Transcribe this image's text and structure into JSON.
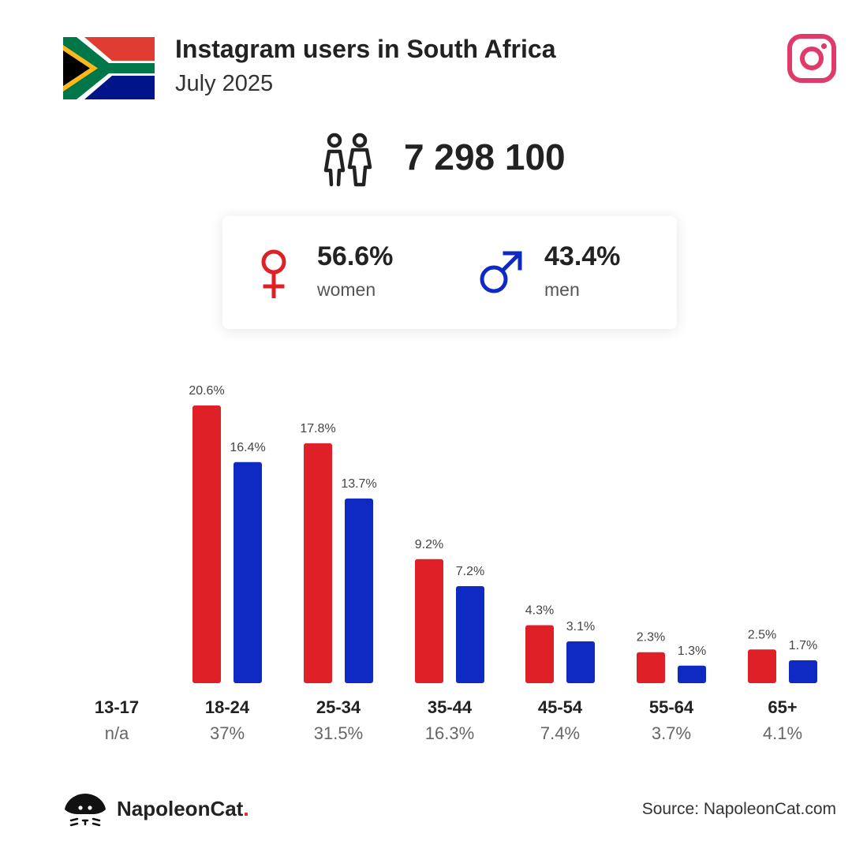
{
  "header": {
    "title": "Instagram users in South Africa",
    "subtitle": "July 2025"
  },
  "icons": {
    "flag": "south-africa-flag",
    "platform": "instagram-icon",
    "people": "people-icon",
    "female": "female-symbol-icon",
    "male": "male-symbol-icon",
    "logo": "napoleoncat-logo"
  },
  "totals": {
    "users": "7 298 100"
  },
  "gender": {
    "female_pct": "56.6%",
    "female_label": "women",
    "male_pct": "43.4%",
    "male_label": "men"
  },
  "colors": {
    "women": "#df2027",
    "men": "#0f2ac2",
    "instagram": "#e03a6b"
  },
  "chart_data": {
    "type": "bar",
    "categories": [
      "13-17",
      "18-24",
      "25-34",
      "35-44",
      "45-54",
      "55-64",
      "65+"
    ],
    "category_totals": [
      "n/a",
      "37%",
      "31.5%",
      "16.3%",
      "7.4%",
      "3.7%",
      "4.1%"
    ],
    "series": [
      {
        "name": "women",
        "values": [
          null,
          20.6,
          17.8,
          9.2,
          4.3,
          2.3,
          2.5
        ],
        "labels": [
          "",
          "20.6%",
          "17.8%",
          "9.2%",
          "4.3%",
          "2.3%",
          "2.5%"
        ]
      },
      {
        "name": "men",
        "values": [
          null,
          16.4,
          13.7,
          7.2,
          3.1,
          1.3,
          1.7
        ],
        "labels": [
          "",
          "16.4%",
          "13.7%",
          "7.2%",
          "3.1%",
          "1.3%",
          "1.7%"
        ]
      }
    ],
    "ylim": [
      0,
      20.6
    ],
    "grid": false,
    "legend": "none"
  },
  "footer": {
    "brand": "NapoleonCat",
    "brand_dot": ".",
    "source": "Source: NapoleonCat.com"
  }
}
